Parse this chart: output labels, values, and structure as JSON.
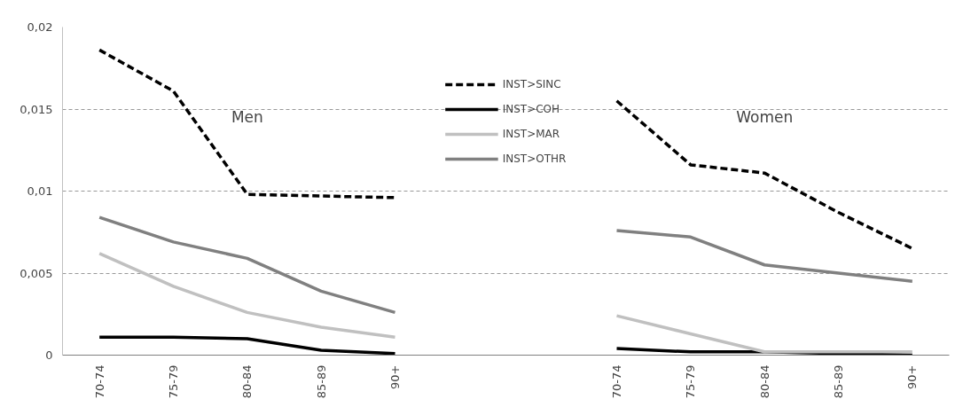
{
  "chart_data": {
    "type": "line",
    "categories": [
      "70-74",
      "75-79",
      "80-84",
      "85-89",
      "90+",
      null,
      null,
      "70-74",
      "75-79",
      "80-84",
      "85-89",
      "90+"
    ],
    "series": [
      {
        "name": "INST>SINC",
        "color": "#000000",
        "line_style": "dashed",
        "values": [
          0.0186,
          0.0161,
          0.0098,
          0.0097,
          0.0096,
          null,
          null,
          0.0155,
          0.0116,
          0.0111,
          0.0087,
          0.0065
        ]
      },
      {
        "name": "INST>COH",
        "color": "#000000",
        "line_style": "solid",
        "values": [
          0.0011,
          0.0011,
          0.001,
          0.0003,
          0.0001,
          null,
          null,
          0.0004,
          0.0002,
          0.0002,
          0.0001,
          0.0
        ]
      },
      {
        "name": "INST>MAR",
        "color": "#c0c0c0",
        "line_style": "solid",
        "values": [
          0.0062,
          0.0042,
          0.0026,
          0.0017,
          0.0011,
          null,
          null,
          0.0024,
          0.0013,
          0.0002,
          0.0002,
          0.0002
        ]
      },
      {
        "name": "INST>OTHR",
        "color": "#808080",
        "line_style": "solid",
        "values": [
          0.0084,
          0.0069,
          0.0059,
          0.0039,
          0.0026,
          null,
          null,
          0.0076,
          0.0072,
          0.0055,
          0.005,
          0.0045
        ]
      }
    ],
    "ylim": [
      0,
      0.02
    ],
    "yticks": [
      {
        "value": 0,
        "label": "0"
      },
      {
        "value": 0.005,
        "label": "0,005"
      },
      {
        "value": 0.01,
        "label": "0,01"
      },
      {
        "value": 0.015,
        "label": "0,015"
      },
      {
        "value": 0.02,
        "label": "0,02"
      }
    ],
    "annotations": [
      "Men",
      "Women"
    ],
    "grid": "y",
    "legend": "top",
    "marker": "none"
  }
}
